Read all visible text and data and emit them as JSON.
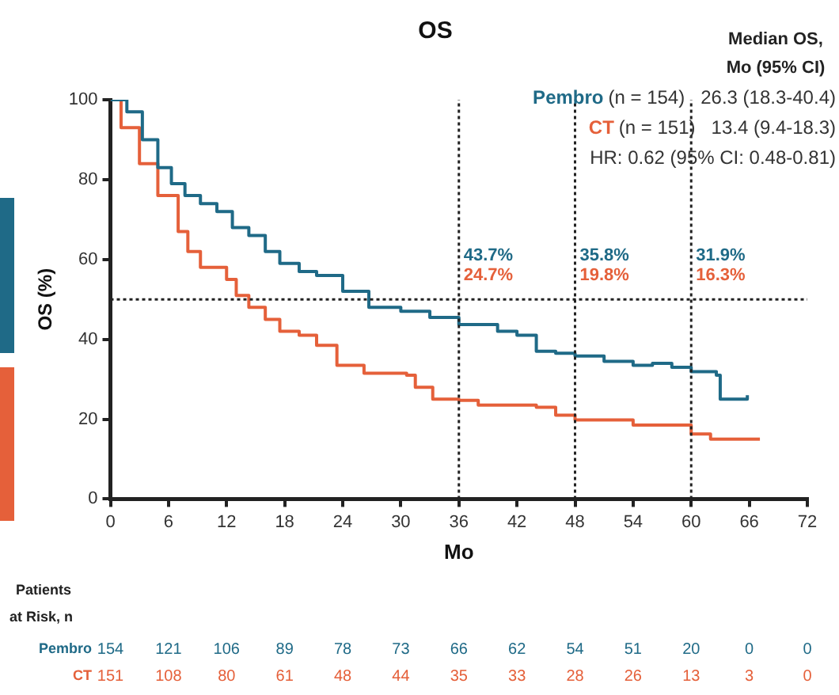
{
  "chart_data": {
    "type": "step",
    "title": "OS",
    "xlabel": "Mo",
    "ylabel": "OS (%)",
    "xlim": [
      0,
      72
    ],
    "xticks": [
      0,
      6,
      12,
      18,
      24,
      30,
      36,
      42,
      48,
      54,
      60,
      66,
      72
    ],
    "ylim": [
      0,
      100
    ],
    "yticks": [
      0,
      20,
      40,
      60,
      80,
      100
    ],
    "grid": false,
    "legend": "top right",
    "marker": "none",
    "line_style": "solid",
    "series": [
      {
        "name": "Pembro",
        "color": "#1f6a87",
        "x": [
          0,
          1.7,
          3.3,
          4.9,
          6.3,
          7.7,
          9.3,
          11,
          12.6,
          14.3,
          16,
          17.5,
          19.5,
          21.3,
          24,
          26.7,
          30,
          33,
          36,
          40,
          42,
          44,
          46,
          48,
          51,
          54,
          56,
          58,
          60,
          62.6,
          63,
          65.8
        ],
        "values": [
          100,
          97,
          90,
          83,
          79,
          76,
          74,
          72,
          68,
          66,
          62,
          59,
          57,
          56,
          52,
          48,
          47,
          45.5,
          43.7,
          42,
          41,
          37,
          36.5,
          35.8,
          34.5,
          33.5,
          34,
          33,
          31.9,
          31,
          25,
          26
        ]
      },
      {
        "name": "CT",
        "color": "#e5603a",
        "x": [
          0,
          1.1,
          3,
          4.9,
          7,
          8,
          9.3,
          12,
          13,
          14.3,
          16,
          17.5,
          19.5,
          21.3,
          23.4,
          26.2,
          30.6,
          31.5,
          33.3,
          36,
          38,
          44,
          46,
          48,
          51,
          54,
          57,
          60,
          62,
          67.1
        ],
        "values": [
          100,
          93,
          84,
          76,
          67,
          62,
          58,
          55,
          51,
          48,
          45,
          42,
          41,
          38.5,
          33.5,
          31.5,
          31,
          28,
          25,
          24.7,
          23.5,
          23,
          21,
          19.8,
          19.8,
          18.5,
          18.5,
          16.3,
          15,
          15
        ]
      }
    ],
    "ref_lines": [
      {
        "axis": "y",
        "value": 50,
        "line_style": "dotted",
        "color": "#222222"
      },
      {
        "axis": "x",
        "value": 36,
        "line_style": "dotted",
        "color": "#222222"
      },
      {
        "axis": "x",
        "value": 48,
        "line_style": "dotted",
        "color": "#222222"
      },
      {
        "axis": "x",
        "value": 60,
        "line_style": "dotted",
        "color": "#222222"
      }
    ],
    "annotations": [
      "Median OS,",
      "Mo (95% CI)",
      "(n = 154)   26.3 (18.3-40.4)",
      "(n = 151)   13.4 (9.4-18.3)",
      "HR: 0.62 (95% CI: 0.48-0.81)",
      "Patients",
      "at Risk, n",
      "154 121 106 89 78 73 66 62 54 51 20 0 0",
      "151 108 80 61 48 44 35 33 28 26 13 3 0",
      {
        "text": "43.7%",
        "x": 36,
        "y": 61
      },
      {
        "text": "24.7%",
        "x": 36,
        "y": 56
      },
      {
        "text": "35.8%",
        "x": 48,
        "y": 61
      },
      {
        "text": "19.8%",
        "x": 48,
        "y": 56
      },
      {
        "text": "31.9%",
        "x": 60,
        "y": 61
      },
      {
        "text": "16.3%",
        "x": 60,
        "y": 56
      }
    ]
  }
}
